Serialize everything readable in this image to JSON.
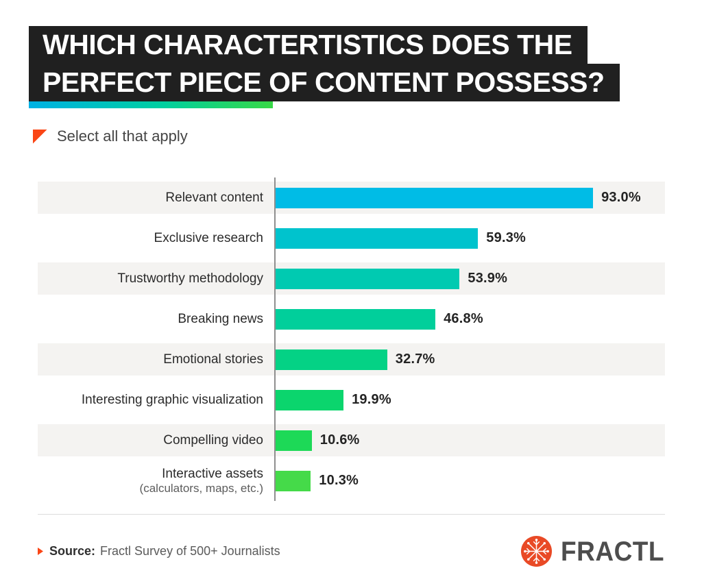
{
  "header": {
    "title_line1": "WHICH CHARACTERTISTICS DOES THE",
    "title_line2": "PERFECT PIECE OF CONTENT POSSESS?",
    "title_bg_color": "#202020",
    "accent_gradient_start": "#00b1e4",
    "accent_gradient_end": "#38d846"
  },
  "subtitle": {
    "marker_icon": "corner-triangle-icon",
    "marker_color": "#fa4616",
    "text": "Select all that apply"
  },
  "chart_data": {
    "type": "bar",
    "orientation": "horizontal",
    "unit": "%",
    "xlim": [
      0,
      100
    ],
    "grid": false,
    "legend": false,
    "value_labels": true,
    "categories": [
      "Relevant content",
      "Exclusive research",
      "Trustworthy methodology",
      "Breaking news",
      "Emotional stories",
      "Interesting graphic visualization",
      "Compelling video",
      "Interactive assets (calculators, maps, etc.)"
    ],
    "values": [
      93.0,
      59.3,
      53.9,
      46.8,
      32.7,
      19.9,
      10.6,
      10.3
    ],
    "rows": [
      {
        "label": "Relevant content",
        "sublabel": "",
        "value": 93.0,
        "display": "93.0%",
        "color": "#00bce6"
      },
      {
        "label": "Exclusive research",
        "sublabel": "",
        "value": 59.3,
        "display": "59.3%",
        "color": "#00c3cd"
      },
      {
        "label": "Trustworthy methodology",
        "sublabel": "",
        "value": 53.9,
        "display": "53.9%",
        "color": "#00cab1"
      },
      {
        "label": "Breaking news",
        "sublabel": "",
        "value": 46.8,
        "display": "46.8%",
        "color": "#01cf9b"
      },
      {
        "label": "Emotional stories",
        "sublabel": "",
        "value": 32.7,
        "display": "32.7%",
        "color": "#04d285"
      },
      {
        "label": "Interesting graphic visualization",
        "sublabel": "",
        "value": 19.9,
        "display": "19.9%",
        "color": "#0bd56d"
      },
      {
        "label": "Compelling video",
        "sublabel": "",
        "value": 10.6,
        "display": "10.6%",
        "color": "#1dd957"
      },
      {
        "label": "Interactive assets",
        "sublabel": "(calculators, maps, etc.)",
        "value": 10.3,
        "display": "10.3%",
        "color": "#45da49"
      }
    ],
    "stripe_color": "#f4f3f1",
    "axis_color": "#8e8e8e"
  },
  "footer": {
    "source_marker_icon": "arrow-right-triangle-icon",
    "source_prefix": "Source:",
    "source_text": "Fractl Survey of 500+ Journalists",
    "logo_icon": "snowflake-icon",
    "logo_color": "#e94a26",
    "brand": "FRACTL",
    "brand_color": "#4d4d4d"
  }
}
